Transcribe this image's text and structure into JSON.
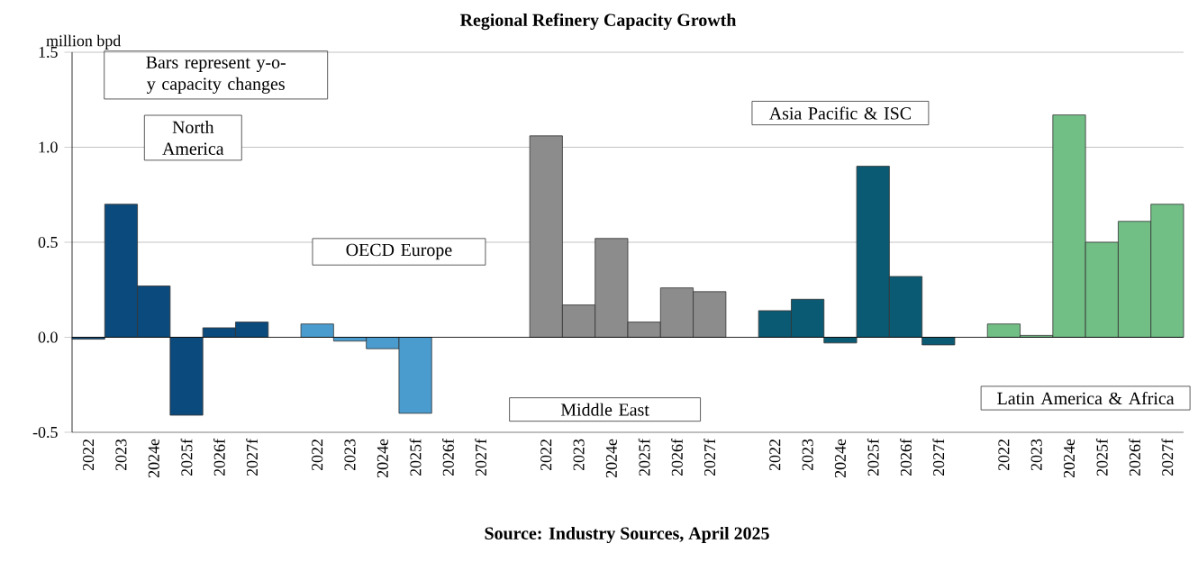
{
  "chart_data": {
    "type": "bar",
    "title": "Regional Refinery Capacity Growth",
    "ylabel": "million bpd",
    "categories": [
      "2022",
      "2023",
      "2024e",
      "2025f",
      "2026f",
      "2027f",
      null,
      "2022",
      "2023",
      "2024e",
      "2025f",
      "2026f",
      "2027f",
      null,
      "2022",
      "2023",
      "2024e",
      "2025f",
      "2026f",
      "2027f",
      null,
      "2022",
      "2023",
      "2024e",
      "2025f",
      "2026f",
      "2027f",
      null,
      "2022",
      "2023",
      "2024e",
      "2025f",
      "2026f",
      "2027f"
    ],
    "series": [
      {
        "name": "North America",
        "color": "#0b4a7c",
        "values": [
          -0.01,
          0.7,
          0.27,
          -0.41,
          0.05,
          0.08,
          null,
          null,
          null,
          null,
          null,
          null,
          null,
          null,
          null,
          null,
          null,
          null,
          null,
          null,
          null,
          null,
          null,
          null,
          null,
          null,
          null,
          null,
          null,
          null,
          null,
          null,
          null,
          null
        ]
      },
      {
        "name": "OECD Europe",
        "color": "#4a9ccf",
        "values": [
          null,
          null,
          null,
          null,
          null,
          null,
          null,
          0.07,
          -0.02,
          -0.06,
          -0.4,
          null,
          null,
          null,
          null,
          null,
          null,
          null,
          null,
          null,
          null,
          null,
          null,
          null,
          null,
          null,
          null,
          null,
          null,
          null,
          null,
          null,
          null,
          null
        ]
      },
      {
        "name": "Middle East",
        "color": "#8c8c8c",
        "values": [
          null,
          null,
          null,
          null,
          null,
          null,
          null,
          null,
          null,
          null,
          null,
          null,
          null,
          null,
          1.06,
          0.17,
          0.52,
          0.08,
          0.26,
          0.24,
          null,
          null,
          null,
          null,
          null,
          null,
          null,
          null,
          null,
          null,
          null,
          null,
          null,
          null
        ]
      },
      {
        "name": "Asia Pacific & ISC",
        "color": "#0b5a73",
        "values": [
          null,
          null,
          null,
          null,
          null,
          null,
          null,
          null,
          null,
          null,
          null,
          null,
          null,
          null,
          null,
          null,
          null,
          null,
          null,
          null,
          null,
          0.14,
          0.2,
          -0.03,
          0.9,
          0.32,
          -0.04,
          null,
          null,
          null,
          null,
          null,
          null,
          null
        ]
      },
      {
        "name": "Latin America & Africa",
        "color": "#72bf86",
        "values": [
          null,
          null,
          null,
          null,
          null,
          null,
          null,
          null,
          null,
          null,
          null,
          null,
          null,
          null,
          null,
          null,
          null,
          null,
          null,
          null,
          null,
          null,
          null,
          null,
          null,
          null,
          null,
          null,
          0.07,
          0.01,
          1.17,
          0.5,
          0.61,
          0.7
        ]
      }
    ],
    "ylim": [
      -0.5,
      1.5
    ],
    "yticks": [
      -0.5,
      {
        "value": 0,
        "label": "0.0"
      },
      0.5,
      {
        "value": 1,
        "label": "1.0"
      },
      1.5
    ],
    "grid": "y",
    "annotations": [
      "Bars represent y-o-y capacity changes",
      "Source: Industry Sources, April 2025"
    ]
  }
}
